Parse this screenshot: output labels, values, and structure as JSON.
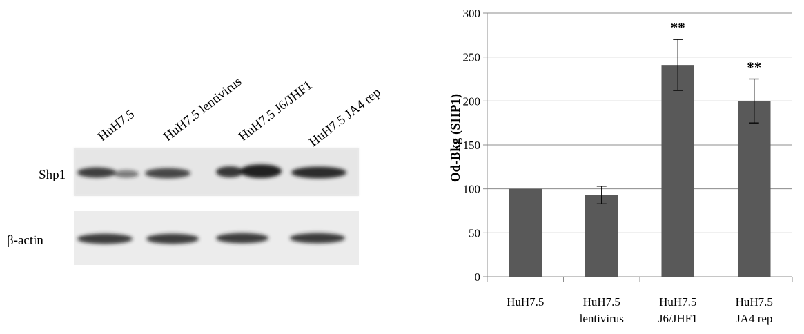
{
  "blot": {
    "lanes": [
      "HuH7.5",
      "HuH7.5 lentivirus",
      "HuH7.5  J6/JHF1",
      "HuH7.5 JA4 rep"
    ],
    "rows": [
      "Shp1",
      "β-actin"
    ]
  },
  "chart_data": {
    "type": "bar",
    "title": "",
    "xlabel": "",
    "ylabel": "Od-Bkg (SHP1)",
    "ylim": [
      0,
      300
    ],
    "yticks": [
      0,
      50,
      100,
      150,
      200,
      250,
      300
    ],
    "grid": true,
    "categories": [
      [
        "HuH7.5"
      ],
      [
        "HuH7.5",
        "lentivirus"
      ],
      [
        "HuH7.5",
        "J6/JHF1"
      ],
      [
        "HuH7.5",
        "JA4 rep"
      ]
    ],
    "values": [
      100,
      93,
      241,
      200
    ],
    "errors": [
      0,
      10,
      29,
      25
    ],
    "annotations": [
      "",
      "",
      "**",
      "**"
    ],
    "bar_color": "#595959"
  }
}
